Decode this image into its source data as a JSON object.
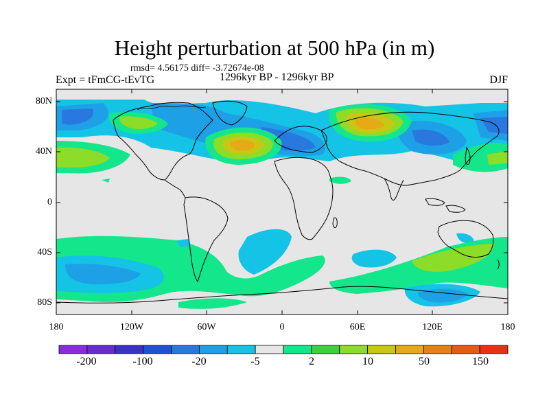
{
  "title": "Height perturbation at 500 hPa (in m)",
  "rmsd_line": "rmsd= 4.56175 diff= -3.72674e-08",
  "experiment_label": "Expt = tFmCG-tEvTG",
  "period_label": "1296kyr BP - 1296kyr BP",
  "season_label": "DJF",
  "colors": {
    "background_field": "#e6e6e6",
    "land_outline": "#000000"
  },
  "lat_ticks": [
    "80N",
    "40N",
    "0",
    "40S",
    "80S"
  ],
  "lon_ticks": [
    "180",
    "120W",
    "60W",
    "0",
    "60E",
    "120E",
    "180"
  ],
  "colorbar": {
    "colors": [
      "#8a2be2",
      "#6a2ad2",
      "#3a32c8",
      "#1e50d8",
      "#2878e0",
      "#1ea0e6",
      "#14c3e6",
      "#e6e6e6",
      "#14e68c",
      "#3cd23c",
      "#8cdc28",
      "#c8c814",
      "#e6aa14",
      "#e68214",
      "#e65a14",
      "#e63214"
    ],
    "labels": [
      "-200",
      "-100",
      "-20",
      "-5",
      "2",
      "10",
      "50",
      "150"
    ]
  },
  "chart_data": {
    "type": "heatmap",
    "title": "Height perturbation at 500 hPa (in m)",
    "xlim": [
      -180,
      180
    ],
    "ylim": [
      -90,
      90
    ],
    "features": [
      {
        "lon": -165,
        "lat": 38,
        "level": "10"
      },
      {
        "lon": -140,
        "lat": 65,
        "level": "-5"
      },
      {
        "lon": -110,
        "lat": 60,
        "level": "5"
      },
      {
        "lon": -25,
        "lat": 47,
        "level": "50"
      },
      {
        "lon": 20,
        "lat": 57,
        "level": "-20"
      },
      {
        "lon": 65,
        "lat": 62,
        "level": "50"
      },
      {
        "lon": 105,
        "lat": 50,
        "level": "-10"
      },
      {
        "lon": 150,
        "lat": 35,
        "level": "10"
      },
      {
        "lon": 165,
        "lat": 62,
        "level": "-5"
      },
      {
        "lon": -140,
        "lat": -62,
        "level": "-10"
      },
      {
        "lon": -15,
        "lat": -45,
        "level": "-5"
      },
      {
        "lon": 60,
        "lat": -48,
        "level": "-5"
      },
      {
        "lon": 110,
        "lat": -52,
        "level": "5"
      },
      {
        "lon": 125,
        "lat": -76,
        "level": "-10"
      },
      {
        "lon": 150,
        "lat": -30,
        "level": "-5"
      }
    ]
  }
}
